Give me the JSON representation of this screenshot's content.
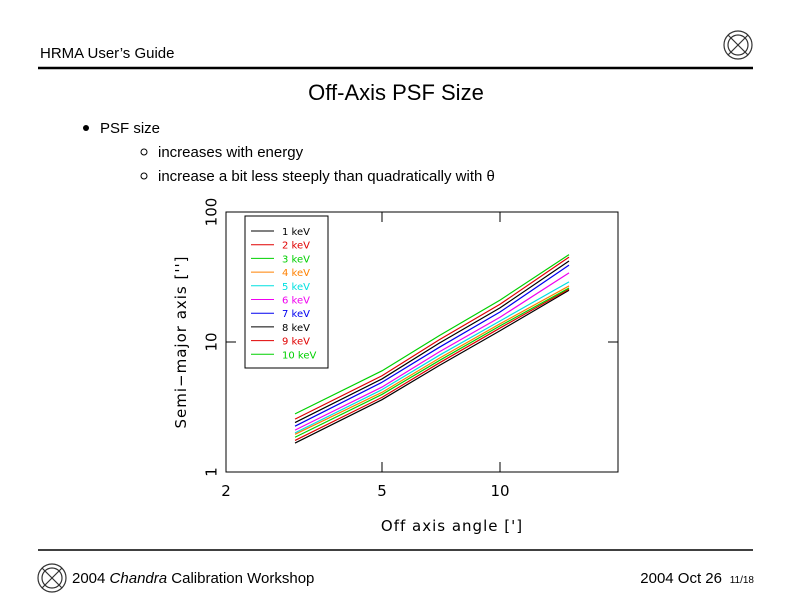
{
  "header": {
    "title": "HRMA User’s Guide"
  },
  "slide": {
    "title": "Off-Axis PSF Size",
    "bullet": "PSF size",
    "subitems": [
      "increases with energy",
      "increase a bit less steeply than quadratically with θ"
    ]
  },
  "chart_data": {
    "type": "line",
    "xlabel": "Off axis angle [']",
    "ylabel": "Semi−major axis ['']",
    "x": [
      3,
      5,
      7,
      10,
      15
    ],
    "xlim": [
      2,
      20
    ],
    "xticks": [
      2,
      5,
      10
    ],
    "ylim": [
      1,
      100
    ],
    "yticks": [
      1,
      10,
      100
    ],
    "log_x": true,
    "log_y": true,
    "series": [
      {
        "name": "1 keV",
        "color": "#000000",
        "values": [
          1.67,
          3.6,
          6.6,
          12.2,
          25
        ]
      },
      {
        "name": "2 keV",
        "color": "#e00000",
        "values": [
          1.75,
          3.75,
          6.9,
          12.8,
          25.5
        ]
      },
      {
        "name": "3 keV",
        "color": "#00d000",
        "values": [
          1.85,
          3.95,
          7.2,
          13.3,
          26
        ]
      },
      {
        "name": "4 keV",
        "color": "#ff8000",
        "values": [
          1.95,
          4.1,
          7.5,
          13.8,
          27
        ]
      },
      {
        "name": "5 keV",
        "color": "#00e0e0",
        "values": [
          2.0,
          4.3,
          7.9,
          14.5,
          29
        ]
      },
      {
        "name": "6 keV",
        "color": "#f000f0",
        "values": [
          2.1,
          4.5,
          8.4,
          15.5,
          34
        ]
      },
      {
        "name": "7 keV",
        "color": "#0000f0",
        "values": [
          2.25,
          4.9,
          9.1,
          17.0,
          39
        ]
      },
      {
        "name": "8 keV",
        "color": "#000000",
        "values": [
          2.4,
          5.2,
          9.8,
          18.3,
          42
        ]
      },
      {
        "name": "9 keV",
        "color": "#e00000",
        "values": [
          2.55,
          5.5,
          10.4,
          19.5,
          45
        ]
      },
      {
        "name": "10 keV",
        "color": "#00d000",
        "values": [
          2.8,
          6.0,
          11.2,
          21.0,
          47
        ]
      }
    ]
  },
  "footer": {
    "year": "2004",
    "program": "Chandra",
    "event": "Calibration Workshop",
    "date": "2004 Oct 26",
    "page": "11/18"
  }
}
